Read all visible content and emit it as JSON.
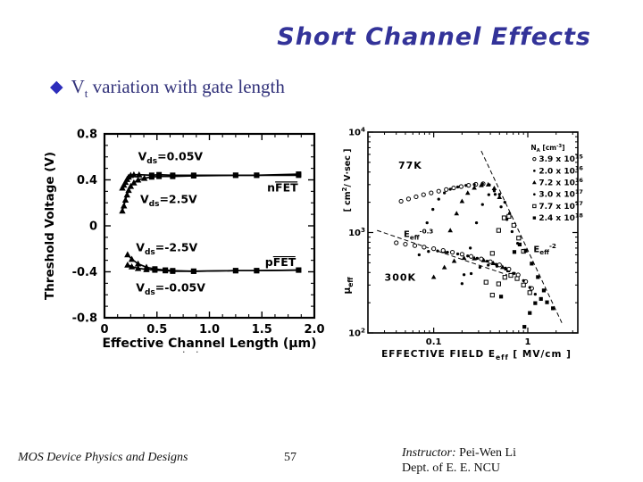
{
  "slide": {
    "title": "Short Channel Effects",
    "bullet": {
      "marker": "◆",
      "base": "V",
      "subscript": "t",
      "rest": " variation with gate length"
    },
    "footer": {
      "left": "MOS Device Physics and Designs",
      "page": "57",
      "instructor_label": "Instructor:",
      "instructor_name": " Pei-Wen Li",
      "dept": "Dept. of E. E. NCU"
    },
    "scan_artifact": "· ·",
    "colors": {
      "title": "#333399",
      "bullet_text": "#32327a",
      "bullet_diamond": "#2d2dbb",
      "chart_ink": "#000000"
    }
  },
  "chart_data": [
    {
      "type": "line",
      "title": "Threshold voltage vs effective channel length",
      "xlabel": "Effective Channel Length (μm)",
      "ylabel": "Threshold Voltage (V)",
      "xlim": [
        0,
        2.0
      ],
      "ylim": [
        -0.8,
        0.8
      ],
      "grid": false,
      "xticks": [
        {
          "v": 0,
          "label": "0"
        },
        {
          "v": 0.5,
          "label": "0.5"
        },
        {
          "v": 1.0,
          "label": "1.0"
        },
        {
          "v": 1.5,
          "label": "1.5"
        },
        {
          "v": 2.0,
          "label": "2.0"
        }
      ],
      "yticks": [
        {
          "v": 0.8,
          "label": "0.8"
        },
        {
          "v": 0.4,
          "label": "0.4"
        },
        {
          "v": 0,
          "label": "0"
        },
        {
          "v": -0.4,
          "label": "-0.4"
        },
        {
          "v": -0.8,
          "label": "-0.8"
        }
      ],
      "minor_x_step": 0.125,
      "minor_y_step": 0.1,
      "series": [
        {
          "name": "nFET Vds=0.05V",
          "points": [
            [
              0.17,
              0.33
            ],
            [
              0.185,
              0.355
            ],
            [
              0.2,
              0.38
            ],
            [
              0.215,
              0.405
            ],
            [
              0.23,
              0.425
            ],
            [
              0.25,
              0.44
            ],
            [
              0.28,
              0.445
            ],
            [
              0.33,
              0.445
            ],
            [
              0.45,
              0.44
            ],
            [
              0.52,
              0.445
            ],
            [
              0.65,
              0.44
            ],
            [
              0.85,
              0.44
            ],
            [
              1.25,
              0.44
            ],
            [
              1.45,
              0.44
            ],
            [
              1.85,
              0.45
            ]
          ]
        },
        {
          "name": "nFET Vds=2.5V",
          "points": [
            [
              0.17,
              0.13
            ],
            [
              0.185,
              0.175
            ],
            [
              0.2,
              0.225
            ],
            [
              0.215,
              0.27
            ],
            [
              0.23,
              0.31
            ],
            [
              0.25,
              0.345
            ],
            [
              0.28,
              0.375
            ],
            [
              0.32,
              0.4
            ],
            [
              0.38,
              0.415
            ],
            [
              0.45,
              0.425
            ],
            [
              0.52,
              0.43
            ],
            [
              0.65,
              0.43
            ],
            [
              0.85,
              0.435
            ],
            [
              1.25,
              0.44
            ],
            [
              1.45,
              0.44
            ],
            [
              1.85,
              0.44
            ]
          ]
        },
        {
          "name": "pFET Vds=-2.5V",
          "points": [
            [
              0.22,
              -0.25
            ],
            [
              0.26,
              -0.29
            ],
            [
              0.32,
              -0.33
            ],
            [
              0.4,
              -0.36
            ],
            [
              0.48,
              -0.375
            ],
            [
              0.58,
              -0.385
            ],
            [
              0.65,
              -0.39
            ],
            [
              0.85,
              -0.395
            ],
            [
              1.25,
              -0.39
            ],
            [
              1.45,
              -0.39
            ],
            [
              1.85,
              -0.385
            ]
          ]
        },
        {
          "name": "pFET Vds=-0.05V",
          "points": [
            [
              0.22,
              -0.34
            ],
            [
              0.26,
              -0.355
            ],
            [
              0.32,
              -0.37
            ],
            [
              0.4,
              -0.38
            ],
            [
              0.48,
              -0.385
            ],
            [
              0.58,
              -0.39
            ],
            [
              0.65,
              -0.395
            ],
            [
              0.85,
              -0.395
            ],
            [
              1.25,
              -0.39
            ],
            [
              1.45,
              -0.39
            ],
            [
              1.85,
              -0.385
            ]
          ]
        }
      ],
      "annotations": [
        {
          "text": "V_{ds}=0.05V",
          "x": 0.32,
          "y": 0.57
        },
        {
          "text": "V_{ds}=2.5V",
          "x": 0.34,
          "y": 0.2
        },
        {
          "text": "nFET",
          "x": 1.55,
          "y": 0.3,
          "bar": true
        },
        {
          "text": "V_{ds}=-2.5V",
          "x": 0.3,
          "y": -0.22
        },
        {
          "text": "pFET",
          "x": 1.53,
          "y": -0.35,
          "bar": true
        },
        {
          "text": "V_{ds}=-0.05V",
          "x": 0.3,
          "y": -0.57
        }
      ]
    },
    {
      "type": "scatter",
      "title": "Effective mobility vs effective field at 77K and 300K",
      "xscale": "log",
      "yscale": "log",
      "xlabel": "EFFECTIVE FIELD  E_{eff}  [ MV/cm ]",
      "ylabel_upper": "[ cm^{2}/ V·sec ]",
      "ylabel_lower": "μ_{eff}",
      "xlim": [
        0.02,
        3.4
      ],
      "ylim": [
        100,
        10000
      ],
      "grid": false,
      "xticks": [
        {
          "v": 0.1,
          "label": "0.1"
        },
        {
          "v": 1,
          "label": "1"
        }
      ],
      "yticks": [
        {
          "v": 10000,
          "label": "10^{4}"
        },
        {
          "v": 1000,
          "label": "10^{3}"
        },
        {
          "v": 100,
          "label": "10^{2}"
        }
      ],
      "legend": {
        "title": "N_{A} [cm^{-3}]",
        "position": "upper-right-inside",
        "x": 1.2,
        "y": 7800,
        "items": [
          {
            "marker": "circle-open",
            "label": "3.9 x 10^{15}"
          },
          {
            "marker": "dot",
            "label": "2.0 x 10^{16}"
          },
          {
            "marker": "triangle",
            "label": "7.2 x 10^{16}"
          },
          {
            "marker": "dot",
            "label": "3.0 x 10^{17}"
          },
          {
            "marker": "square-open",
            "label": "7.7 x 10^{17}"
          },
          {
            "marker": "square",
            "label": "2.4 x 10^{18}"
          }
        ]
      },
      "annotations": [
        {
          "text": "77K",
          "x": 0.042,
          "y": 4300,
          "size": 11,
          "ls": 1
        },
        {
          "text": "300K",
          "x": 0.03,
          "y": 330,
          "size": 11,
          "ls": 1
        },
        {
          "text": "E_{eff}^{-0.3}",
          "x": 0.048,
          "y": 900,
          "size": 10
        },
        {
          "text": "E_{eff}^{-2}",
          "x": 1.15,
          "y": 640,
          "size": 10
        }
      ],
      "guide_lines": [
        {
          "x1": 0.025,
          "y1": 1050,
          "x2": 0.6,
          "y2": 380,
          "slope_label": "Eeff^-0.3"
        },
        {
          "x1": 0.32,
          "y1": 6500,
          "x2": 2.3,
          "y2": 126,
          "slope_label": "Eeff^-2"
        }
      ],
      "series": [
        {
          "name": "77K NA=3.9e15",
          "marker": "circle-open",
          "points": [
            [
              0.045,
              2050
            ],
            [
              0.054,
              2160
            ],
            [
              0.065,
              2270
            ],
            [
              0.078,
              2380
            ],
            [
              0.094,
              2480
            ],
            [
              0.113,
              2580
            ],
            [
              0.136,
              2680
            ],
            [
              0.163,
              2780
            ],
            [
              0.196,
              2870
            ],
            [
              0.235,
              2950
            ],
            [
              0.28,
              3020
            ],
            [
              0.335,
              3060
            ]
          ]
        },
        {
          "name": "77K NA=2.0e16",
          "marker": "dot",
          "points": [
            [
              0.085,
              1250
            ],
            [
              0.098,
              1700
            ],
            [
              0.113,
              2150
            ],
            [
              0.13,
              2480
            ],
            [
              0.15,
              2700
            ],
            [
              0.18,
              2840
            ],
            [
              0.22,
              2940
            ],
            [
              0.27,
              3010
            ],
            [
              0.33,
              3050
            ],
            [
              0.39,
              2980
            ],
            [
              0.45,
              2400
            ],
            [
              0.52,
              1800
            ],
            [
              0.6,
              1350
            ],
            [
              0.68,
              1020
            ],
            [
              0.78,
              780
            ]
          ]
        },
        {
          "name": "77K NA=7.2e16",
          "marker": "triangle",
          "points": [
            [
              0.13,
              650
            ],
            [
              0.15,
              1050
            ],
            [
              0.175,
              1550
            ],
            [
              0.2,
              2050
            ],
            [
              0.23,
              2480
            ],
            [
              0.27,
              2790
            ],
            [
              0.32,
              2960
            ],
            [
              0.38,
              3000
            ],
            [
              0.44,
              2760
            ],
            [
              0.5,
              2250
            ]
          ]
        },
        {
          "name": "77K NA=3.0e17",
          "marker": "dot",
          "points": [
            [
              0.21,
              380
            ],
            [
              0.245,
              700
            ],
            [
              0.285,
              1250
            ],
            [
              0.33,
              1900
            ],
            [
              0.385,
              2380
            ],
            [
              0.44,
              2600
            ],
            [
              0.5,
              2400
            ],
            [
              0.57,
              2000
            ],
            [
              0.64,
              1550
            ]
          ]
        },
        {
          "name": "77K NA=7.7e17",
          "marker": "square-open",
          "points": [
            [
              0.36,
              320
            ],
            [
              0.42,
              620
            ],
            [
              0.49,
              1050
            ],
            [
              0.56,
              1400
            ],
            [
              0.63,
              1450
            ],
            [
              0.71,
              1180
            ],
            [
              0.8,
              880
            ],
            [
              0.9,
              650
            ]
          ]
        },
        {
          "name": "77K NA=2.4e18",
          "marker": "square",
          "points": [
            [
              0.52,
              230
            ],
            [
              0.62,
              420
            ],
            [
              0.72,
              640
            ],
            [
              0.82,
              760
            ],
            [
              0.95,
              660
            ],
            [
              1.1,
              490
            ],
            [
              1.28,
              360
            ],
            [
              1.48,
              265
            ]
          ]
        },
        {
          "name": "300K NA=3.9e15",
          "marker": "circle-open",
          "points": [
            [
              0.04,
              790
            ],
            [
              0.05,
              765
            ],
            [
              0.063,
              740
            ],
            [
              0.079,
              715
            ],
            [
              0.1,
              690
            ],
            [
              0.126,
              663
            ],
            [
              0.158,
              636
            ],
            [
              0.2,
              608
            ],
            [
              0.25,
              578
            ],
            [
              0.32,
              546
            ],
            [
              0.4,
              512
            ],
            [
              0.5,
              476
            ],
            [
              0.63,
              432
            ],
            [
              0.79,
              378
            ],
            [
              0.95,
              325
            ],
            [
              1.1,
              278
            ]
          ]
        },
        {
          "name": "300K NA=2.0e16",
          "marker": "dot",
          "points": [
            [
              0.07,
              600
            ],
            [
              0.088,
              648
            ],
            [
              0.11,
              655
            ],
            [
              0.14,
              636
            ],
            [
              0.18,
              612
            ],
            [
              0.23,
              584
            ],
            [
              0.29,
              553
            ],
            [
              0.37,
              518
            ],
            [
              0.46,
              482
            ],
            [
              0.58,
              442
            ],
            [
              0.72,
              392
            ],
            [
              0.9,
              332
            ],
            [
              1.05,
              284
            ],
            [
              1.2,
              243
            ]
          ]
        },
        {
          "name": "300K NA=7.2e16",
          "marker": "triangle",
          "points": [
            [
              0.1,
              360
            ],
            [
              0.13,
              450
            ],
            [
              0.165,
              520
            ],
            [
              0.21,
              558
            ],
            [
              0.27,
              552
            ],
            [
              0.34,
              528
            ],
            [
              0.43,
              494
            ],
            [
              0.54,
              452
            ]
          ]
        },
        {
          "name": "300K NA=3.0e17",
          "marker": "dot",
          "points": [
            [
              0.2,
              310
            ],
            [
              0.25,
              390
            ],
            [
              0.31,
              450
            ],
            [
              0.38,
              474
            ],
            [
              0.47,
              462
            ],
            [
              0.58,
              432
            ],
            [
              0.7,
              392
            ]
          ]
        },
        {
          "name": "300K NA=7.7e17",
          "marker": "square-open",
          "points": [
            [
              0.42,
              238
            ],
            [
              0.49,
              308
            ],
            [
              0.57,
              358
            ],
            [
              0.66,
              374
            ],
            [
              0.77,
              348
            ],
            [
              0.9,
              300
            ],
            [
              1.05,
              252
            ]
          ]
        },
        {
          "name": "300K NA=2.4e18",
          "marker": "square",
          "points": [
            [
              0.92,
              115
            ],
            [
              1.05,
              158
            ],
            [
              1.2,
              198
            ],
            [
              1.38,
              218
            ],
            [
              1.6,
              202
            ],
            [
              1.85,
              176
            ]
          ]
        }
      ]
    }
  ]
}
